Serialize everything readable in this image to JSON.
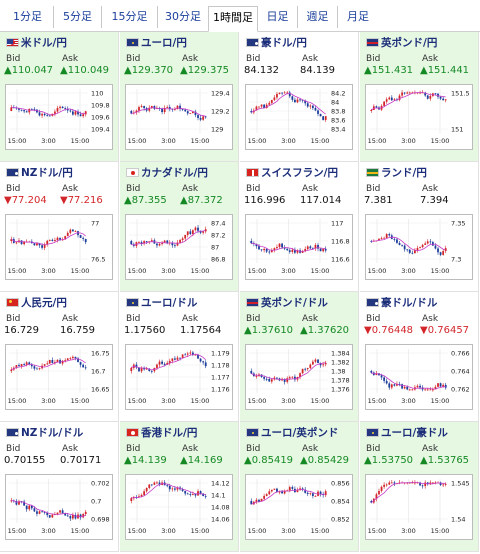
{
  "tabs": [
    "1分足",
    "5分足",
    "15分足",
    "30分足",
    "1時間足",
    "日足",
    "週足",
    "月足"
  ],
  "active_tab": 4,
  "labels": {
    "bid": "Bid",
    "ask": "Ask"
  },
  "colors": {
    "up_bg": "#e6f7e2",
    "down_bg": "#fbe3e3",
    "candle_up": "#d3262a",
    "candle_down": "#1b3d9b",
    "ma": "#c63bc8",
    "price_up": "#158a24",
    "price_down": "#d3262a"
  },
  "pairs": [
    {
      "name": "米ドル/円",
      "flag": "us",
      "trend": "up",
      "bid": "▲110.047",
      "ask": "▲110.049",
      "ticks": [
        "110",
        "109.8",
        "109.6",
        "109.4"
      ],
      "times": [
        "15:00",
        "3:00",
        "15:00"
      ]
    },
    {
      "name": "ユーロ/円",
      "flag": "eu",
      "trend": "up",
      "bid": "▲129.370",
      "ask": "▲129.375",
      "ticks": [
        "129.4",
        "129.2",
        "129"
      ],
      "times": [
        "15:00",
        "3:00",
        "15:00"
      ]
    },
    {
      "name": "豪ドル/円",
      "flag": "au",
      "trend": "flat",
      "bid": "84.132",
      "ask": "84.139",
      "ticks": [
        "84.2",
        "84",
        "83.8",
        "83.6",
        "83.4"
      ],
      "times": [
        "15:00",
        "3:00",
        "15:00"
      ]
    },
    {
      "name": "英ポンド/円",
      "flag": "uk",
      "trend": "up",
      "bid": "▲151.431",
      "ask": "▲151.441",
      "ticks": [
        "151.5",
        "151"
      ],
      "times": [
        "15:00",
        "3:00",
        "15:00"
      ]
    },
    {
      "name": "NZドル/円",
      "flag": "nz",
      "trend": "down",
      "bid": "▼77.204",
      "ask": "▼77.216",
      "ticks": [
        "77",
        "76.5"
      ],
      "times": [
        "15:00",
        "3:00",
        "15:00"
      ]
    },
    {
      "name": "カナダドル/円",
      "flag": "ca",
      "trend": "up",
      "bid": "▲87.355",
      "ask": "▲87.372",
      "ticks": [
        "87.4",
        "87.2",
        "87",
        "86.8"
      ],
      "times": [
        "15:00",
        "3:00",
        "15:00"
      ]
    },
    {
      "name": "スイスフラン/円",
      "flag": "ch",
      "trend": "flat",
      "bid": "116.996",
      "ask": "117.014",
      "ticks": [
        "117",
        "116.8",
        "116.6"
      ],
      "times": [
        "15:00",
        "3:00",
        "15:00"
      ]
    },
    {
      "name": "ランド/円",
      "flag": "za",
      "trend": "flat",
      "bid": "7.381",
      "ask": "7.394",
      "ticks": [
        "7.35",
        "7.3"
      ],
      "times": [
        "15:00",
        "3:00",
        "15:00"
      ]
    },
    {
      "name": "人民元/円",
      "flag": "cn",
      "trend": "flat",
      "bid": "16.729",
      "ask": "16.759",
      "ticks": [
        "16.75",
        "16.7",
        "16.65"
      ],
      "times": [
        "15:00",
        "3:00",
        "15:00"
      ]
    },
    {
      "name": "ユーロ/ドル",
      "flag": "eu",
      "trend": "flat",
      "bid": "1.17560",
      "ask": "1.17564",
      "ticks": [
        "1.179",
        "1.178",
        "1.177",
        "1.176"
      ],
      "times": [
        "15:00",
        "3:00",
        "15:00"
      ]
    },
    {
      "name": "英ポンド/ドル",
      "flag": "uk",
      "trend": "up",
      "bid": "▲1.37610",
      "ask": "▲1.37620",
      "ticks": [
        "1.384",
        "1.382",
        "1.38",
        "1.378",
        "1.376"
      ],
      "times": [
        "15:00",
        "3:00",
        "15:00"
      ]
    },
    {
      "name": "豪ドル/ドル",
      "flag": "au",
      "trend": "down",
      "bid": "▼0.76448",
      "ask": "▼0.76457",
      "ticks": [
        "0.766",
        "0.764",
        "0.762"
      ],
      "times": [
        "15:00",
        "3:00",
        "15:00"
      ]
    },
    {
      "name": "NZドル/ドル",
      "flag": "nz",
      "trend": "flat",
      "bid": "0.70155",
      "ask": "0.70171",
      "ticks": [
        "0.702",
        "0.7",
        "0.698"
      ],
      "times": [
        "15:00",
        "3:00",
        "15:00"
      ]
    },
    {
      "name": "香港ドル/円",
      "flag": "hk",
      "trend": "up",
      "bid": "▲14.139",
      "ask": "▲14.169",
      "ticks": [
        "14.12",
        "14.1",
        "14.08",
        "14.06"
      ],
      "times": [
        "15:00",
        "3:00",
        "15:00"
      ]
    },
    {
      "name": "ユーロ/英ポンド",
      "flag": "eu",
      "trend": "up",
      "bid": "▲0.85419",
      "ask": "▲0.85429",
      "ticks": [
        "0.856",
        "0.854",
        "0.852"
      ],
      "times": [
        "15:00",
        "3:00",
        "15:00"
      ]
    },
    {
      "name": "ユーロ/豪ドル",
      "flag": "eu",
      "trend": "up",
      "bid": "▲1.53750",
      "ask": "▲1.53765",
      "ticks": [
        "1.545",
        "1.54"
      ],
      "times": [
        "15:00",
        "3:00",
        "15:00"
      ]
    }
  ]
}
